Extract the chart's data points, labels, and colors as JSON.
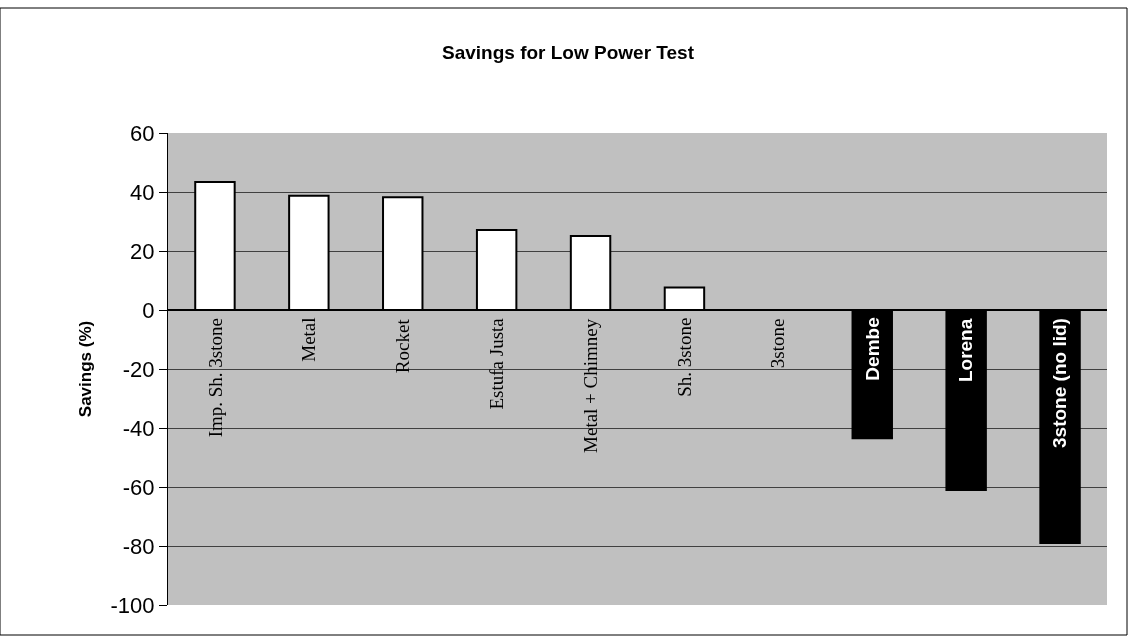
{
  "chart_data": {
    "type": "bar",
    "title": "Savings for Low Power Test",
    "ylabel": "Savings (%)",
    "categories": [
      "Imp. Sh. 3stone",
      "Metal",
      "Rocket",
      "Estufa Justa",
      "Metal + Chimney",
      "Sh. 3stone",
      "3stone",
      "Dembe",
      "Lorena",
      "3stone (no lid)"
    ],
    "values": [
      43.4,
      38.7,
      38.2,
      27.1,
      25.1,
      7.6,
      null,
      -43.5,
      -61,
      -79
    ],
    "colors": [
      "#ffffff",
      "#ffffff",
      "#ffffff",
      "#ffffff",
      "#ffffff",
      "#ffffff",
      "#ffffff",
      "#000000",
      "#000000",
      "#000000"
    ],
    "ylim": [
      -100,
      60
    ],
    "yticks": [
      -100,
      -80,
      -60,
      -40,
      -20,
      0,
      20,
      40,
      60
    ],
    "grid": "y",
    "legend": false
  }
}
